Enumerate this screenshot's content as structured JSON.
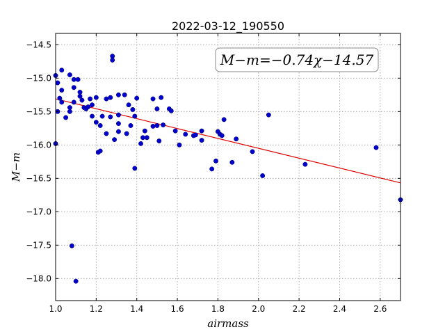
{
  "chart_data": {
    "type": "scatter",
    "title": "2022-03-12_190550",
    "xlabel": "airmass",
    "ylabel": "M−m",
    "xlim": [
      1.0,
      2.7
    ],
    "ylim": [
      -18.33,
      -14.33
    ],
    "x_ticks": [
      "1.0",
      "1.2",
      "1.4",
      "1.6",
      "1.8",
      "2.0",
      "2.2",
      "2.4",
      "2.6"
    ],
    "y_ticks": [
      "−14.5",
      "−15.0",
      "−15.5",
      "−16.0",
      "−16.5",
      "−17.0",
      "−17.5",
      "−18.0"
    ],
    "grid": true,
    "annotation": "M−m=−0.74χ−14.57",
    "fit": {
      "slope": -0.74,
      "intercept": -14.57
    },
    "colors": {
      "points": "#0000cc",
      "fit": "#dd0000",
      "grid": "#999999"
    },
    "points": [
      [
        1.0,
        -14.96
      ],
      [
        1.01,
        -15.07
      ],
      [
        1.02,
        -15.3
      ],
      [
        1.01,
        -15.5
      ],
      [
        1.03,
        -14.88
      ],
      [
        1.03,
        -15.18
      ],
      [
        1.03,
        -15.36
      ],
      [
        1.05,
        -15.59
      ],
      [
        1.07,
        -14.95
      ],
      [
        1.07,
        -15.44
      ],
      [
        1.07,
        -15.5
      ],
      [
        1.09,
        -15.36
      ],
      [
        1.09,
        -15.02
      ],
      [
        1.09,
        -15.14
      ],
      [
        1.11,
        -15.02
      ],
      [
        1.12,
        -15.21
      ],
      [
        1.12,
        -15.27
      ],
      [
        1.13,
        -15.33
      ],
      [
        1.14,
        -15.44
      ],
      [
        1.15,
        -15.46
      ],
      [
        1.16,
        -15.43
      ],
      [
        1.17,
        -15.31
      ],
      [
        1.18,
        -15.4
      ],
      [
        1.18,
        -15.57
      ],
      [
        1.2,
        -15.29
      ],
      [
        1.2,
        -15.66
      ],
      [
        1.21,
        -16.11
      ],
      [
        1.22,
        -15.71
      ],
      [
        1.23,
        -15.57
      ],
      [
        1.22,
        -16.09
      ],
      [
        1.25,
        -15.31
      ],
      [
        1.25,
        -15.83
      ],
      [
        1.27,
        -15.29
      ],
      [
        1.27,
        -15.58
      ],
      [
        1.28,
        -14.67
      ],
      [
        1.28,
        -14.73
      ],
      [
        1.29,
        -15.92
      ],
      [
        1.31,
        -15.25
      ],
      [
        1.31,
        -15.55
      ],
      [
        1.31,
        -15.68
      ],
      [
        1.31,
        -15.8
      ],
      [
        1.34,
        -15.25
      ],
      [
        1.35,
        -15.83
      ],
      [
        1.36,
        -15.4
      ],
      [
        1.37,
        -15.71
      ],
      [
        1.38,
        -15.47
      ],
      [
        1.39,
        -15.57
      ],
      [
        1.39,
        -16.35
      ],
      [
        1.4,
        -15.3
      ],
      [
        1.42,
        -15.98
      ],
      [
        1.43,
        -15.89
      ],
      [
        1.44,
        -15.79
      ],
      [
        1.45,
        -15.89
      ],
      [
        1.48,
        -15.31
      ],
      [
        1.48,
        -15.72
      ],
      [
        1.5,
        -15.46
      ],
      [
        1.5,
        -15.71
      ],
      [
        1.51,
        -15.94
      ],
      [
        1.52,
        -15.29
      ],
      [
        1.53,
        -15.7
      ],
      [
        1.56,
        -15.46
      ],
      [
        1.57,
        -15.49
      ],
      [
        1.59,
        -15.79
      ],
      [
        1.61,
        -16.0
      ],
      [
        1.64,
        -15.84
      ],
      [
        1.68,
        -15.86
      ],
      [
        1.69,
        -15.85
      ],
      [
        1.72,
        -15.79
      ],
      [
        1.72,
        -15.93
      ],
      [
        1.77,
        -16.36
      ],
      [
        1.79,
        -16.24
      ],
      [
        1.8,
        -15.8
      ],
      [
        1.81,
        -15.84
      ],
      [
        1.82,
        -15.86
      ],
      [
        1.83,
        -15.62
      ],
      [
        1.87,
        -16.26
      ],
      [
        1.89,
        -15.91
      ],
      [
        1.97,
        -16.1
      ],
      [
        2.02,
        -16.46
      ],
      [
        2.05,
        -15.55
      ],
      [
        2.23,
        -16.29
      ],
      [
        2.58,
        -16.04
      ],
      [
        2.7,
        -16.82
      ],
      [
        1.0,
        -15.98
      ],
      [
        1.08,
        -17.51
      ],
      [
        1.1,
        -18.04
      ]
    ]
  }
}
